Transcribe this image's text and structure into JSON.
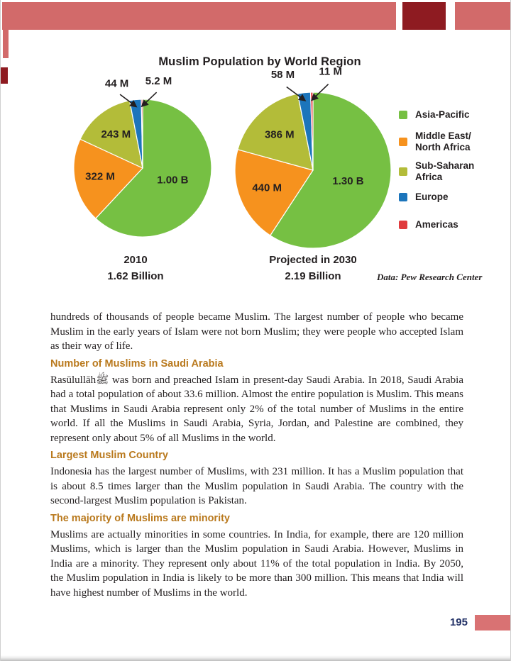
{
  "page": {
    "number": "195"
  },
  "theme": {
    "band_pink": "#d26a6a",
    "band_dark_red": "#8e1b21",
    "footer_pink": "#d97273",
    "heading_color": "#b9791d",
    "page_number_color": "#233267"
  },
  "chart_data": {
    "type": "pie",
    "title": "Muslim Population by World Region",
    "credit": "Data: Pew Research Center",
    "legend_position": "right",
    "legend": [
      {
        "label_lines": [
          "Asia-Pacific"
        ],
        "color": "#76c043"
      },
      {
        "label_lines": [
          "Middle East/",
          "North Africa"
        ],
        "color": "#f6921e"
      },
      {
        "label_lines": [
          "Sub-Saharan",
          "Africa"
        ],
        "color": "#b3bc39"
      },
      {
        "label_lines": [
          "Europe"
        ],
        "color": "#1c75bb"
      },
      {
        "label_lines": [
          "Americas"
        ],
        "color": "#e03b3e"
      }
    ],
    "pies": [
      {
        "caption": [
          "2010",
          "1.62 Billion"
        ],
        "slices": [
          {
            "region": "Asia-Pacific",
            "value_m": 1000,
            "value_label": "1.00 B",
            "color": "#76c043",
            "label_placement": "inside"
          },
          {
            "region": "Middle East/North Africa",
            "value_m": 322,
            "value_label": "322 M",
            "color": "#f6921e",
            "label_placement": "inside"
          },
          {
            "region": "Sub-Saharan Africa",
            "value_m": 243,
            "value_label": "243 M",
            "color": "#b3bc39",
            "label_placement": "inside"
          },
          {
            "region": "Europe",
            "value_m": 44,
            "value_label": "44 M",
            "color": "#1c75bb",
            "label_placement": "callout-left"
          },
          {
            "region": "Americas",
            "value_m": 5.2,
            "value_label": "5.2 M",
            "color": "#e03b3e",
            "label_placement": "callout-right"
          }
        ]
      },
      {
        "caption": [
          "Projected in 2030",
          "2.19 Billion"
        ],
        "slices": [
          {
            "region": "Asia-Pacific",
            "value_m": 1300,
            "value_label": "1.30 B",
            "color": "#76c043",
            "label_placement": "inside"
          },
          {
            "region": "Middle East/North Africa",
            "value_m": 440,
            "value_label": "440 M",
            "color": "#f6921e",
            "label_placement": "inside"
          },
          {
            "region": "Sub-Saharan Africa",
            "value_m": 386,
            "value_label": "386 M",
            "color": "#b3bc39",
            "label_placement": "inside"
          },
          {
            "region": "Europe",
            "value_m": 58,
            "value_label": "58 M",
            "color": "#1c75bb",
            "label_placement": "callout-left"
          },
          {
            "region": "Americas",
            "value_m": 11,
            "value_label": "11 M",
            "color": "#e03b3e",
            "label_placement": "callout-right"
          }
        ]
      }
    ]
  },
  "article": {
    "intro": "hundreds of thousands of people became Muslim. The largest number of people who became Muslim in the early years of Islam were not born Muslim; they were people who accepted Islam as their way of life.",
    "sections": [
      {
        "heading": "Number of Muslims in Saudi Arabia",
        "body": "Rasūlullāhﷺ was born and preached Islam in present-day Saudi Arabia. In 2018, Saudi Arabia had a total population of about 33.6 million. Almost the entire population is Muslim. This means that Muslims in Saudi Arabia represent only 2% of the total number of Muslims in the entire world. If all the Muslims in Saudi Arabia, Syria, Jordan, and Palestine are combined, they represent only about 5% of all Muslims in the world."
      },
      {
        "heading": "Largest Muslim Country",
        "body": "Indonesia has the largest number of Muslims, with 231 million. It has a Muslim population that is about 8.5 times larger than the Muslim population in Saudi Arabia. The country with the second-largest Muslim population is Pakistan."
      },
      {
        "heading": "The majority of Muslims are minority",
        "body": "Muslims are actually minorities in some countries. In India, for example, there are 120 million Muslims, which is larger than the Muslim population in Saudi Arabia. However, Muslims in India are a minority. They represent only about 11% of the total population in India. By 2050, the Muslim population in India is likely to be more than 300 million. This means that India will have highest number of Muslims in the world."
      }
    ]
  }
}
